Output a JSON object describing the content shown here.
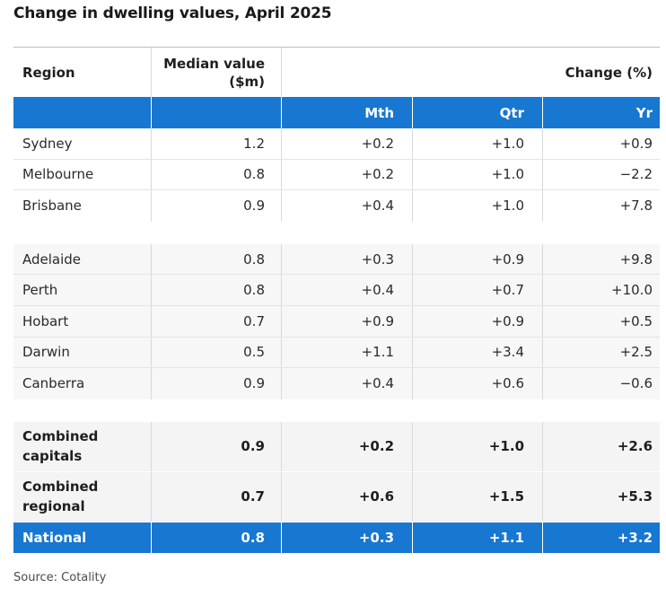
{
  "title": "Change in dwelling values, April 2025",
  "source": "Source: Cotality",
  "header": {
    "region": "Region",
    "median_line1": "Median value",
    "median_line2": "($m)",
    "change": "Change (%)",
    "mth": "Mth",
    "qtr": "Qtr",
    "yr": "Yr"
  },
  "chart_data": {
    "type": "table",
    "columns": [
      "Region",
      "Median value ($m)",
      "Mth",
      "Qtr",
      "Yr"
    ],
    "groups": [
      [
        {
          "region": "Sydney",
          "median": "1.2",
          "mth": "+0.2",
          "qtr": "+1.0",
          "yr": "+0.9"
        },
        {
          "region": "Melbourne",
          "median": "0.8",
          "mth": "+0.2",
          "qtr": "+1.0",
          "yr": "−2.2"
        },
        {
          "region": "Brisbane",
          "median": "0.9",
          "mth": "+0.4",
          "qtr": "+1.0",
          "yr": "+7.8"
        }
      ],
      [
        {
          "region": "Adelaide",
          "median": "0.8",
          "mth": "+0.3",
          "qtr": "+0.9",
          "yr": "+9.8"
        },
        {
          "region": "Perth",
          "median": "0.8",
          "mth": "+0.4",
          "qtr": "+0.7",
          "yr": "+10.0"
        },
        {
          "region": "Hobart",
          "median": "0.7",
          "mth": "+0.9",
          "qtr": "+0.9",
          "yr": "+0.5"
        },
        {
          "region": "Darwin",
          "median": "0.5",
          "mth": "+1.1",
          "qtr": "+3.4",
          "yr": "+2.5"
        },
        {
          "region": "Canberra",
          "median": "0.9",
          "mth": "+0.4",
          "qtr": "+0.6",
          "yr": "−0.6"
        }
      ]
    ],
    "summary": [
      {
        "region_line1": "Combined",
        "region_line2": "capitals",
        "median": "0.9",
        "mth": "+0.2",
        "qtr": "+1.0",
        "yr": "+2.6"
      },
      {
        "region_line1": "Combined",
        "region_line2": "regional",
        "median": "0.7",
        "mth": "+0.6",
        "qtr": "+1.5",
        "yr": "+5.3"
      }
    ],
    "national": {
      "region": "National",
      "median": "0.8",
      "mth": "+0.3",
      "qtr": "+1.1",
      "yr": "+3.2"
    }
  },
  "colors": {
    "accent_blue": "#1877d1",
    "summary_bg": "#f4f4f4"
  }
}
